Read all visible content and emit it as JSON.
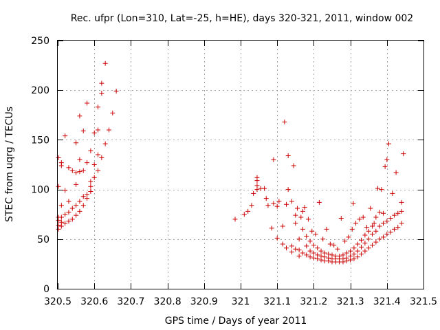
{
  "chart_data": {
    "type": "scatter",
    "title": "Rec. ufpr (Lon=310, Lat=-25, h=HE), days 320-321, 2011, window 002",
    "xlabel": "GPS time / Days of year 2011",
    "ylabel": "STEC from uqrg / TECUs",
    "xlim": [
      320.5,
      321.5
    ],
    "ylim": [
      0,
      250
    ],
    "xticks": [
      320.5,
      320.6,
      320.7,
      320.8,
      320.9,
      321,
      321.1,
      321.2,
      321.3,
      321.4,
      321.5
    ],
    "xtick_labels": [
      "320.5",
      "320.6",
      "320.7",
      "320.8",
      "320.9",
      "321",
      "321.1",
      "321.2",
      "321.3",
      "321.4",
      "321.5"
    ],
    "yticks": [
      0,
      50,
      100,
      150,
      200,
      250
    ],
    "ytick_labels": [
      "0",
      "50",
      "100",
      "150",
      "200",
      "250"
    ],
    "grid": true,
    "marker": "+",
    "color": "#cc0000",
    "series": [
      {
        "name": "STEC",
        "points": [
          [
            320.502,
            60
          ],
          [
            320.502,
            64
          ],
          [
            320.502,
            69
          ],
          [
            320.502,
            72
          ],
          [
            320.502,
            103
          ],
          [
            320.502,
            132
          ],
          [
            320.51,
            63
          ],
          [
            320.51,
            67
          ],
          [
            320.51,
            72
          ],
          [
            320.51,
            84
          ],
          [
            320.51,
            124
          ],
          [
            320.51,
            127
          ],
          [
            320.52,
            66
          ],
          [
            320.52,
            75
          ],
          [
            320.52,
            99
          ],
          [
            320.52,
            154
          ],
          [
            320.53,
            68
          ],
          [
            320.53,
            77
          ],
          [
            320.53,
            88
          ],
          [
            320.53,
            122
          ],
          [
            320.54,
            70
          ],
          [
            320.54,
            81
          ],
          [
            320.54,
            119
          ],
          [
            320.55,
            74
          ],
          [
            320.55,
            84
          ],
          [
            320.55,
            105
          ],
          [
            320.55,
            117
          ],
          [
            320.55,
            147
          ],
          [
            320.56,
            78
          ],
          [
            320.56,
            88
          ],
          [
            320.56,
            118
          ],
          [
            320.56,
            130
          ],
          [
            320.56,
            174
          ],
          [
            320.57,
            84
          ],
          [
            320.57,
            93
          ],
          [
            320.57,
            119
          ],
          [
            320.57,
            159
          ],
          [
            320.58,
            91
          ],
          [
            320.58,
            95
          ],
          [
            320.58,
            127
          ],
          [
            320.58,
            187
          ],
          [
            320.59,
            98
          ],
          [
            320.59,
            103
          ],
          [
            320.59,
            108
          ],
          [
            320.59,
            139
          ],
          [
            320.6,
            112
          ],
          [
            320.6,
            125
          ],
          [
            320.6,
            157
          ],
          [
            320.61,
            119
          ],
          [
            320.61,
            135
          ],
          [
            320.61,
            160
          ],
          [
            320.61,
            183
          ],
          [
            320.62,
            132
          ],
          [
            320.62,
            197
          ],
          [
            320.62,
            207
          ],
          [
            320.63,
            146
          ],
          [
            320.63,
            227
          ],
          [
            320.64,
            160
          ],
          [
            320.65,
            177
          ],
          [
            320.66,
            199
          ],
          [
            320.985,
            70
          ],
          [
            321.01,
            75
          ],
          [
            321.02,
            78
          ],
          [
            321.03,
            84
          ],
          [
            321.035,
            96
          ],
          [
            321.045,
            100
          ],
          [
            321.045,
            104
          ],
          [
            321.045,
            109
          ],
          [
            321.045,
            112
          ],
          [
            321.055,
            101
          ],
          [
            321.065,
            101
          ],
          [
            321.07,
            91
          ],
          [
            321.075,
            84
          ],
          [
            321.085,
            61
          ],
          [
            321.09,
            86
          ],
          [
            321.09,
            130
          ],
          [
            321.1,
            51
          ],
          [
            321.1,
            83
          ],
          [
            321.105,
            88
          ],
          [
            321.115,
            45
          ],
          [
            321.115,
            63
          ],
          [
            321.12,
            168
          ],
          [
            321.125,
            41
          ],
          [
            321.125,
            85
          ],
          [
            321.13,
            100
          ],
          [
            321.13,
            134
          ],
          [
            321.14,
            37
          ],
          [
            321.14,
            43
          ],
          [
            321.14,
            88
          ],
          [
            321.145,
            124
          ],
          [
            321.15,
            40
          ],
          [
            321.15,
            66
          ],
          [
            321.15,
            74
          ],
          [
            321.155,
            81
          ],
          [
            321.16,
            33
          ],
          [
            321.16,
            39
          ],
          [
            321.16,
            50
          ],
          [
            321.165,
            72
          ],
          [
            321.17,
            36
          ],
          [
            321.17,
            60
          ],
          [
            321.17,
            78
          ],
          [
            321.175,
            82
          ],
          [
            321.18,
            34
          ],
          [
            321.18,
            43
          ],
          [
            321.18,
            53
          ],
          [
            321.185,
            70
          ],
          [
            321.19,
            32
          ],
          [
            321.19,
            38
          ],
          [
            321.19,
            48
          ],
          [
            321.195,
            58
          ],
          [
            321.2,
            31
          ],
          [
            321.2,
            36
          ],
          [
            321.2,
            44
          ],
          [
            321.205,
            55
          ],
          [
            321.21,
            30
          ],
          [
            321.21,
            34
          ],
          [
            321.21,
            41
          ],
          [
            321.215,
            87
          ],
          [
            321.22,
            29
          ],
          [
            321.22,
            33
          ],
          [
            321.22,
            38
          ],
          [
            321.225,
            50
          ],
          [
            321.23,
            28
          ],
          [
            321.23,
            32
          ],
          [
            321.23,
            36
          ],
          [
            321.235,
            60
          ],
          [
            321.24,
            28
          ],
          [
            321.24,
            31
          ],
          [
            321.24,
            35
          ],
          [
            321.245,
            45
          ],
          [
            321.25,
            27
          ],
          [
            321.25,
            30
          ],
          [
            321.25,
            34
          ],
          [
            321.255,
            44
          ],
          [
            321.26,
            27
          ],
          [
            321.26,
            30
          ],
          [
            321.26,
            33
          ],
          [
            321.265,
            40
          ],
          [
            321.27,
            27
          ],
          [
            321.27,
            30
          ],
          [
            321.27,
            33
          ],
          [
            321.275,
            71
          ],
          [
            321.28,
            27
          ],
          [
            321.28,
            30
          ],
          [
            321.28,
            34
          ],
          [
            321.285,
            48
          ],
          [
            321.29,
            28
          ],
          [
            321.29,
            31
          ],
          [
            321.29,
            36
          ],
          [
            321.295,
            52
          ],
          [
            321.3,
            29
          ],
          [
            321.3,
            33
          ],
          [
            321.3,
            38
          ],
          [
            321.305,
            60
          ],
          [
            321.308,
            86
          ],
          [
            321.31,
            30
          ],
          [
            321.31,
            35
          ],
          [
            321.31,
            41
          ],
          [
            321.315,
            66
          ],
          [
            321.32,
            32
          ],
          [
            321.32,
            38
          ],
          [
            321.32,
            45
          ],
          [
            321.325,
            70
          ],
          [
            321.33,
            35
          ],
          [
            321.33,
            42
          ],
          [
            321.33,
            49
          ],
          [
            321.335,
            72
          ],
          [
            321.34,
            38
          ],
          [
            321.34,
            46
          ],
          [
            321.34,
            54
          ],
          [
            321.345,
            62
          ],
          [
            321.35,
            41
          ],
          [
            321.35,
            50
          ],
          [
            321.35,
            58
          ],
          [
            321.355,
            81
          ],
          [
            321.36,
            44
          ],
          [
            321.36,
            55
          ],
          [
            321.36,
            63
          ],
          [
            321.365,
            66
          ],
          [
            321.37,
            47
          ],
          [
            321.37,
            58
          ],
          [
            321.37,
            72
          ],
          [
            321.375,
            101
          ],
          [
            321.38,
            50
          ],
          [
            321.38,
            63
          ],
          [
            321.38,
            77
          ],
          [
            321.385,
            100
          ],
          [
            321.39,
            52
          ],
          [
            321.39,
            66
          ],
          [
            321.39,
            76
          ],
          [
            321.395,
            123
          ],
          [
            321.4,
            55
          ],
          [
            321.4,
            68
          ],
          [
            321.4,
            130
          ],
          [
            321.405,
            146
          ],
          [
            321.41,
            57
          ],
          [
            321.41,
            71
          ],
          [
            321.415,
            96
          ],
          [
            321.42,
            60
          ],
          [
            321.42,
            74
          ],
          [
            321.425,
            117
          ],
          [
            321.43,
            62
          ],
          [
            321.43,
            76
          ],
          [
            321.44,
            66
          ],
          [
            321.44,
            78
          ],
          [
            321.44,
            87
          ],
          [
            321.445,
            136
          ]
        ]
      }
    ]
  }
}
